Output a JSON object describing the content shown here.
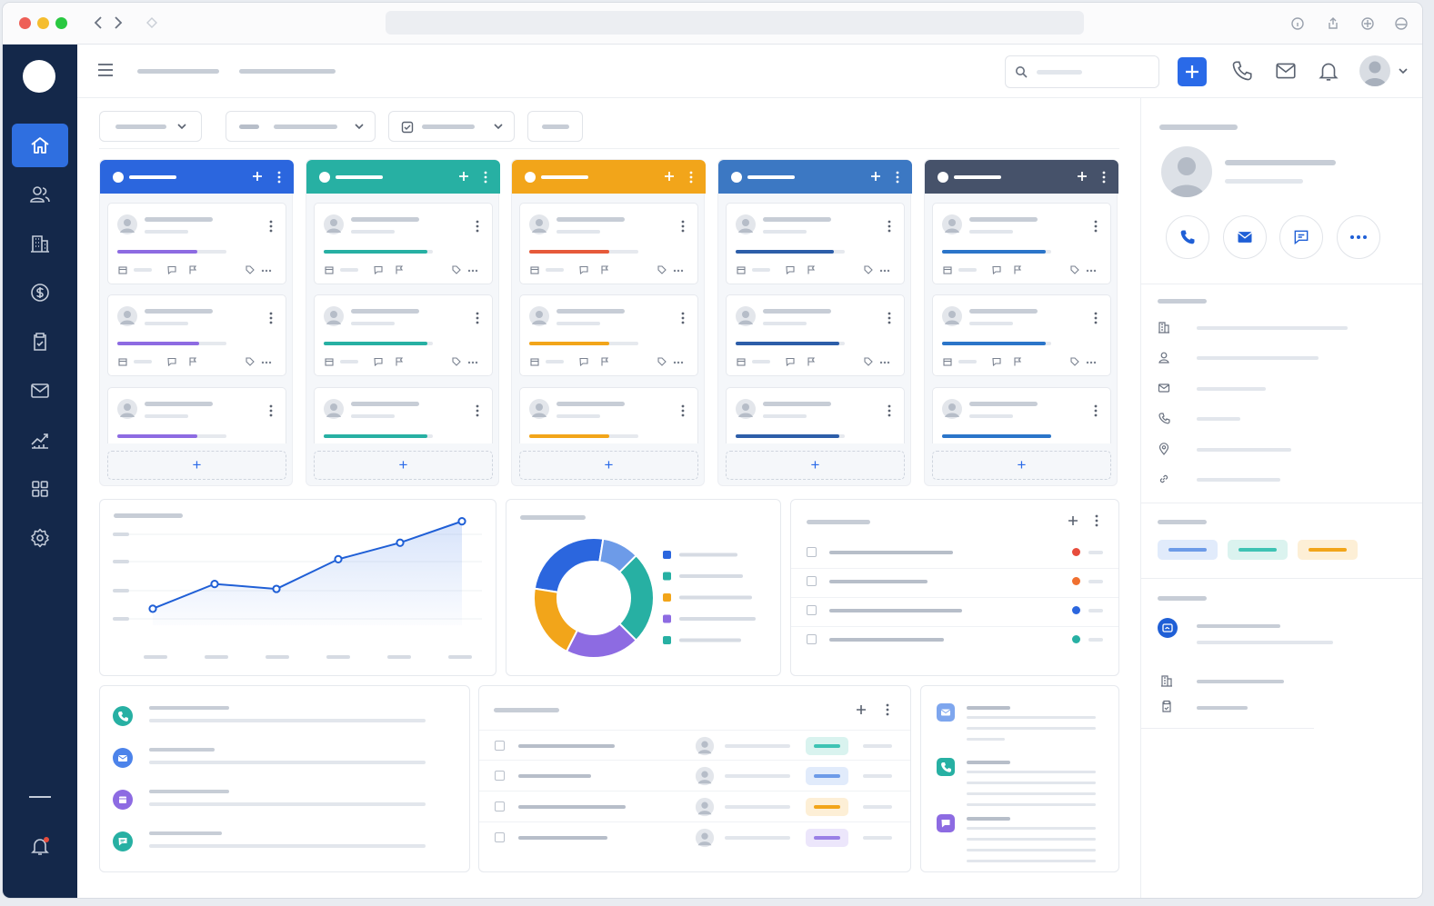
{
  "window": {
    "controls": [
      "close",
      "minimize",
      "maximize"
    ],
    "colors": {
      "close": "#ee5f57",
      "minimize": "#f5bd2e",
      "maximize": "#29c841"
    }
  },
  "sidebar": {
    "items": [
      {
        "icon": "home-icon",
        "active": true
      },
      {
        "icon": "users-icon",
        "active": false
      },
      {
        "icon": "building-icon",
        "active": false
      },
      {
        "icon": "dollar-icon",
        "active": false
      },
      {
        "icon": "clipboard-icon",
        "active": false
      },
      {
        "icon": "mail-icon",
        "active": false
      },
      {
        "icon": "analytics-icon",
        "active": false
      },
      {
        "icon": "grid-icon",
        "active": false
      },
      {
        "icon": "settings-icon",
        "active": false
      }
    ],
    "bottom": [
      "collapse-icon",
      "notification-bell-icon"
    ]
  },
  "colors": {
    "accent": "#2a6ae8",
    "sidebar": "#14284a",
    "blue": "#2b66de",
    "teal": "#27b0a3",
    "orange": "#f2a51a",
    "steel": "#3c78c3",
    "slate": "#46526a",
    "purple": "#8d6be2",
    "red": "#e74c3c"
  },
  "kanban": {
    "columns": [
      {
        "color": "#2b66de",
        "bar": "#8d6be2"
      },
      {
        "color": "#27b0a3",
        "bar": "#27b0a3"
      },
      {
        "color": "#f2a51a",
        "bar": "#e65a3a"
      },
      {
        "color": "#3c78c3",
        "bar": "#2d5ea9"
      },
      {
        "color": "#46526a",
        "bar": "#2b75c9"
      }
    ],
    "add_label": "+"
  },
  "header": {
    "add_button": "+"
  },
  "chart_data": [
    {
      "type": "line",
      "series": [
        {
          "values": [
            1,
            2.5,
            2.2,
            4,
            5,
            6.3
          ]
        }
      ],
      "xlabel": "",
      "ylabel": ""
    },
    {
      "type": "pie",
      "values": [
        25,
        25,
        20,
        20,
        10
      ],
      "colors": [
        "#2b66de",
        "#27b0a3",
        "#8d6be2",
        "#f2a51a",
        "#6d9be8"
      ]
    }
  ]
}
